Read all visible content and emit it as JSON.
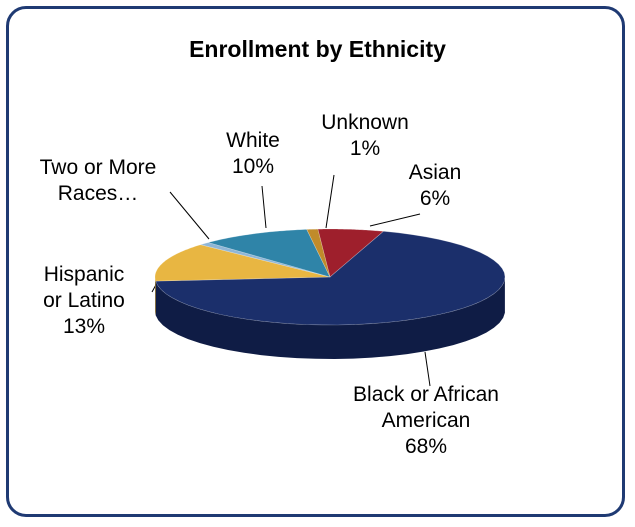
{
  "chart_data": {
    "type": "pie",
    "title": "Enrollment by Ethnicity",
    "slices": [
      {
        "label": "Asian",
        "value": 6,
        "display": "6%",
        "color": "#9e1f2c",
        "side": "#6e1520"
      },
      {
        "label": "Black or African American",
        "value": 68,
        "display": "68%",
        "color": "#1b2f6b",
        "side": "#0f1c45"
      },
      {
        "label": "Hispanic or Latino",
        "value": 13,
        "display": "13%",
        "color": "#e8b642",
        "side": "#b48a2a"
      },
      {
        "label": "Two or More Races…",
        "value": 1,
        "display": "",
        "color": "#8fb6d6",
        "side": "#5f86a6"
      },
      {
        "label": "White",
        "value": 10,
        "display": "10%",
        "color": "#2f84a8",
        "side": "#1f5e7a"
      },
      {
        "label": "Unknown",
        "value": 1,
        "display": "1%",
        "color": "#c08b2a",
        "side": "#8a621c"
      }
    ],
    "labels": {
      "asian": "Asian\n6%",
      "black": "Black or African\nAmerican\n68%",
      "hispanic": "Hispanic\nor Latino\n13%",
      "two_or_more": "Two or More\nRaces…",
      "white": "White\n10%",
      "unknown": "Unknown\n1%"
    }
  }
}
